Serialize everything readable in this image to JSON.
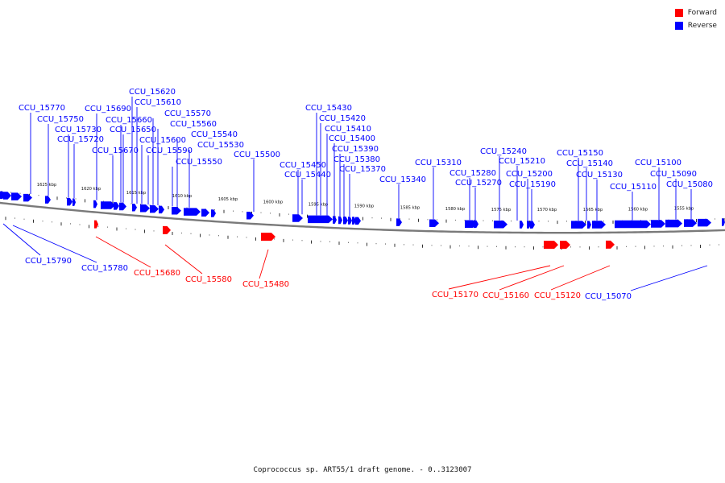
{
  "caption": "Coprococcus sp. ART55/1 draft genome. - 0..3123007",
  "legend": [
    {
      "label": "Forward",
      "color": "#ff0000"
    },
    {
      "label": "Reverse",
      "color": "#0000ff"
    }
  ],
  "colors": {
    "forward": "#ff0000",
    "reverse": "#0000ff",
    "backbone": "#808080"
  },
  "kbp_ticks": [
    "1625 kbp",
    "1620 kbp",
    "1615 kbp",
    "1610 kbp",
    "1605 kbp",
    "1600 kbp",
    "1595 kbp",
    "1590 kbp",
    "1585 kbp",
    "1580 kbp",
    "1575 kbp",
    "1570 kbp",
    "1565 kbp",
    "1560 kbp",
    "1555 kbp"
  ],
  "reverse_labels": [
    "CCU_15770",
    "CCU_15750",
    "CCU_15730",
    "CCU_15720",
    "CCU_15690",
    "CCU_15670",
    "CCU_15660",
    "CCU_15650",
    "CCU_15620",
    "CCU_15610",
    "CCU_15600",
    "CCU_15590",
    "CCU_15570",
    "CCU_15560",
    "CCU_15550",
    "CCU_15540",
    "CCU_15530",
    "CCU_15500",
    "CCU_15450",
    "CCU_15440",
    "CCU_15430",
    "CCU_15420",
    "CCU_15410",
    "CCU_15400",
    "CCU_15390",
    "CCU_15380",
    "CCU_15370",
    "CCU_15340",
    "CCU_15310",
    "CCU_15280",
    "CCU_15270",
    "CCU_15240",
    "CCU_15210",
    "CCU_15200",
    "CCU_15190",
    "CCU_15150",
    "CCU_15140",
    "CCU_15130",
    "CCU_15110",
    "CCU_15100",
    "CCU_15090",
    "CCU_15080"
  ],
  "lower_reverse_labels": [
    "CCU_15790",
    "CCU_15780",
    "CCU_15070"
  ],
  "forward_labels": [
    "CCU_15680",
    "CCU_15580",
    "CCU_15480",
    "CCU_15170",
    "CCU_15160",
    "CCU_15120"
  ]
}
